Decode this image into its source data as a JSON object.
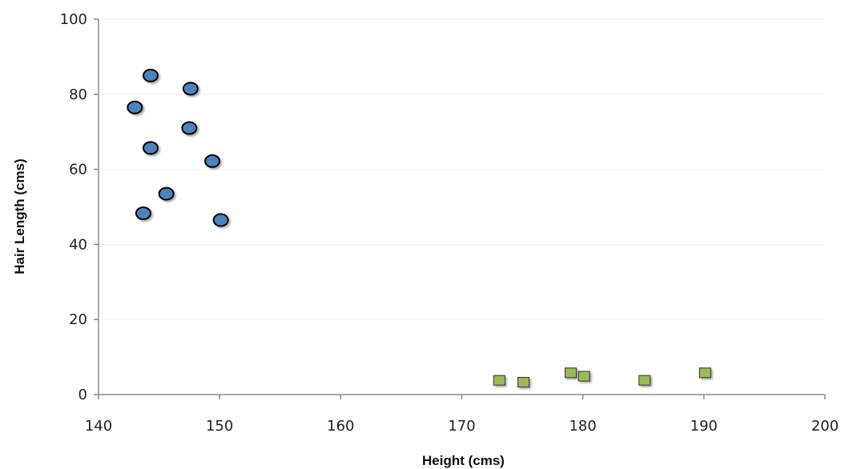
{
  "chart_data": {
    "type": "scatter",
    "title": "",
    "xlabel": "Height (cms)",
    "ylabel": "Hair Length (cms)",
    "xlim": [
      140,
      200
    ],
    "ylim": [
      0,
      100
    ],
    "x_ticks": [
      "140",
      "150",
      "160",
      "170",
      "180",
      "190",
      "200"
    ],
    "y_ticks": [
      "0",
      "20",
      "40",
      "60",
      "80",
      "100"
    ],
    "grid": true,
    "legend": "none",
    "series": [
      {
        "marker": "circle",
        "color": "#4f81bd",
        "points": [
          {
            "x": 144.3,
            "y": 85
          },
          {
            "x": 147.6,
            "y": 81.5
          },
          {
            "x": 143.0,
            "y": 76.5
          },
          {
            "x": 147.5,
            "y": 71
          },
          {
            "x": 144.3,
            "y": 65.7
          },
          {
            "x": 149.4,
            "y": 62.2
          },
          {
            "x": 145.6,
            "y": 53.5
          },
          {
            "x": 143.7,
            "y": 48.3
          },
          {
            "x": 150.1,
            "y": 46.5
          }
        ]
      },
      {
        "marker": "square",
        "color": "#9bbb59",
        "points": [
          {
            "x": 173.1,
            "y": 3.8
          },
          {
            "x": 175.1,
            "y": 3.3
          },
          {
            "x": 179.0,
            "y": 5.8
          },
          {
            "x": 180.1,
            "y": 4.9
          },
          {
            "x": 185.1,
            "y": 3.8
          },
          {
            "x": 190.1,
            "y": 5.8
          }
        ]
      }
    ]
  }
}
